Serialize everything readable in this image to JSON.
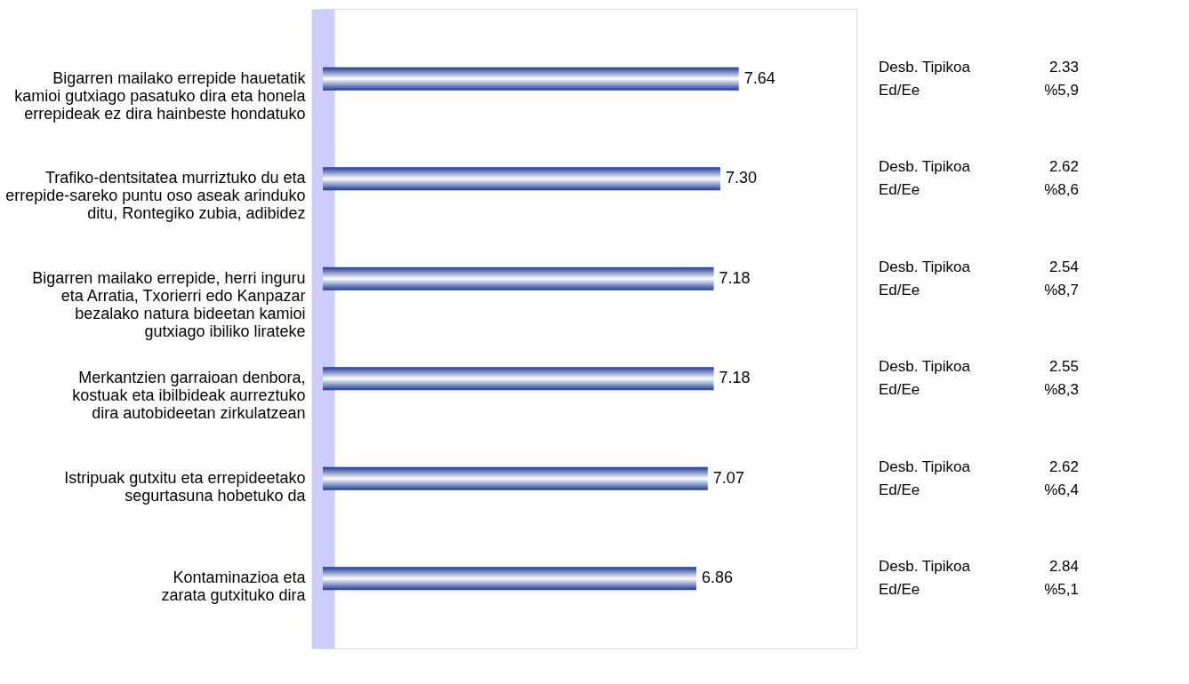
{
  "chart_data": {
    "type": "bar",
    "orientation": "horizontal",
    "categories": [
      "Bigarren mailako errepide hauetatik\nkamioi gutxiago pasatuko dira eta honela\nerrepideak ez dira hainbeste hondatuko",
      "Trafiko-dentsitatea murriztuko du eta\nerrepide-sareko puntu oso aseak arinduko\nditu, Rontegiko zubia, adibidez",
      "Bigarren mailako errepide, herri inguru\neta Arratia, Txorierri edo Kanpazar\nbezalako natura bideetan kamioi\ngutxiago ibiliko lirateke",
      "Merkantzien garraioan denbora,\nkostuak eta ibilbideak aurreztuko\ndira autobideetan zirkulatzean",
      "Istripuak gutxitu eta errepideetako\nsegurtasuna hobetuko da",
      "Kontaminazioa eta\nzarata gutxituko dira"
    ],
    "values": [
      7.64,
      7.3,
      7.18,
      7.18,
      7.07,
      6.86
    ],
    "value_labels": [
      "7.64",
      "7.30",
      "7.18",
      "7.18",
      "7.07",
      "6.86"
    ],
    "color": "#1c3a96",
    "xlim": [
      0,
      9.8
    ],
    "annotations": [
      "Desb. Tipikoa",
      "2.33",
      "Ed/Ee",
      "%5,9",
      "Desb. Tipikoa",
      "2.62",
      "Ed/Ee",
      "%8,6",
      "Desb. Tipikoa",
      "2.54",
      "Ed/Ee",
      "%8,7",
      "Desb. Tipikoa",
      "2.55",
      "Ed/Ee",
      "%8,3",
      "Desb. Tipikoa",
      "2.62",
      "Ed/Ee",
      "%6,4",
      "Desb. Tipikoa",
      "2.84",
      "Ed/Ee",
      "%5,1"
    ]
  }
}
